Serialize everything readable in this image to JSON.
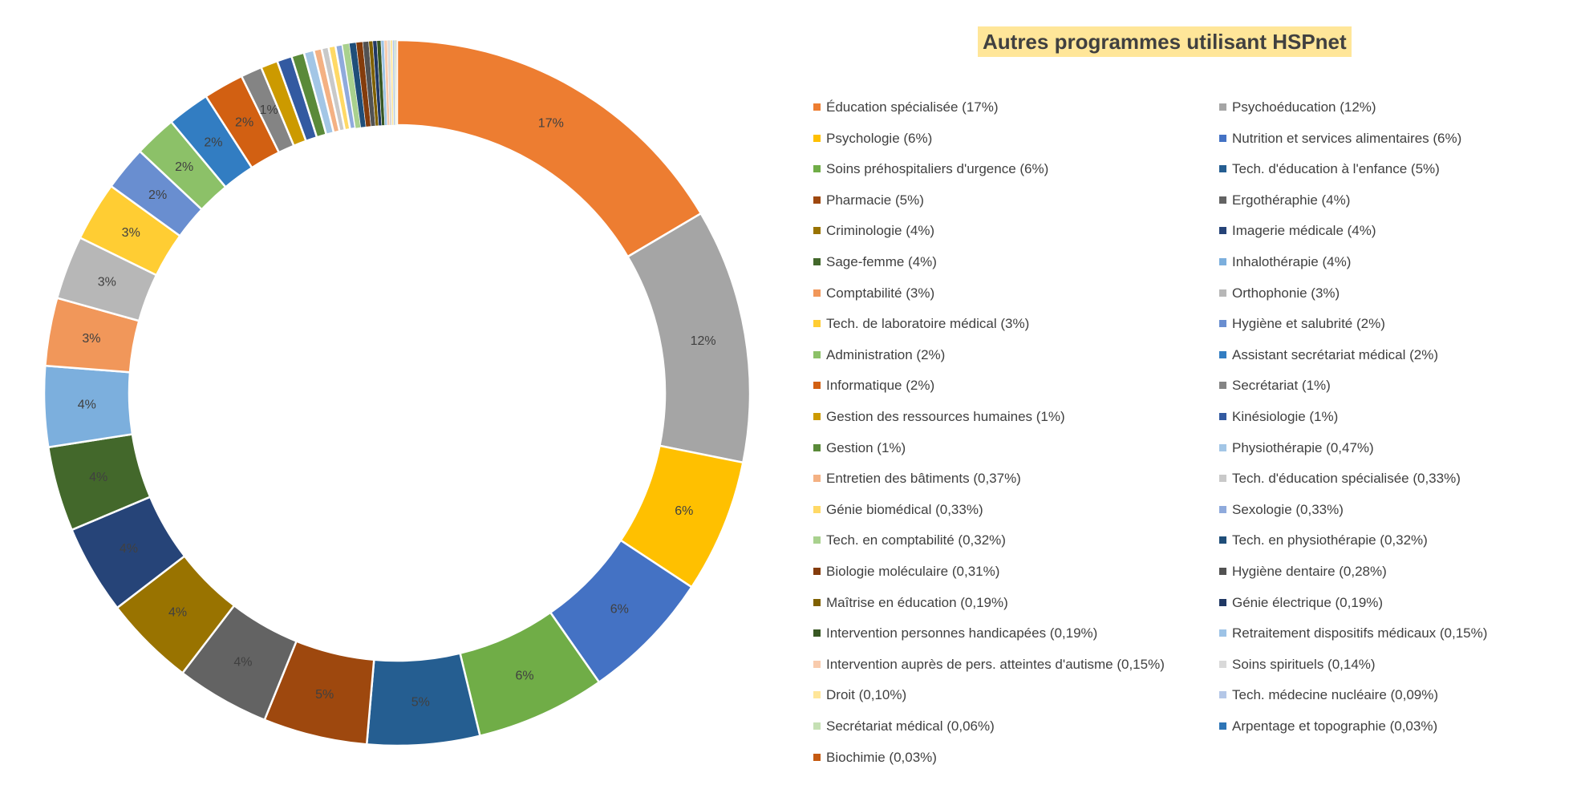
{
  "chart_data": {
    "type": "pie",
    "subtype": "donut",
    "title": "Autres programmes utilisant HSPnet",
    "title_highlight": "#FFE699",
    "legend_position": "right",
    "categories": [
      {
        "label": "Éducation spécialisée (17%)",
        "value": 17.0,
        "data_label": "17%",
        "color": "#ED7D31"
      },
      {
        "label": "Psychoéducation (12%)",
        "value": 12.0,
        "data_label": "12%",
        "color": "#A5A5A5"
      },
      {
        "label": "Psychologie (6%)",
        "value": 6.3,
        "data_label": "6%",
        "color": "#FFC000"
      },
      {
        "label": "Nutrition et services alimentaires (6%)",
        "value": 6.2,
        "data_label": "6%",
        "color": "#4472C4"
      },
      {
        "label": "Soins préhospitaliers d'urgence (6%)",
        "value": 6.1,
        "data_label": "6%",
        "color": "#70AD47"
      },
      {
        "label": "Tech. d'éducation à l'enfance (5%)",
        "value": 5.3,
        "data_label": "5%",
        "color": "#255E91"
      },
      {
        "label": "Pharmacie (5%)",
        "value": 4.9,
        "data_label": "5%",
        "color": "#9E480E"
      },
      {
        "label": "Ergothéraphie (4%)",
        "value": 4.4,
        "data_label": "4%",
        "color": "#636363"
      },
      {
        "label": "Criminologie (4%)",
        "value": 4.3,
        "data_label": "4%",
        "color": "#997300"
      },
      {
        "label": "Imagerie médicale (4%)",
        "value": 4.2,
        "data_label": "4%",
        "color": "#264478"
      },
      {
        "label": "Sage-femme (4%)",
        "value": 4.0,
        "data_label": "4%",
        "color": "#43682B"
      },
      {
        "label": "Inhalothérapie (4%)",
        "value": 3.8,
        "data_label": "4%",
        "color": "#7CAFDD"
      },
      {
        "label": "Comptabilité (3%)",
        "value": 3.2,
        "data_label": "3%",
        "color": "#F1975A"
      },
      {
        "label": "Orthophonie (3%)",
        "value": 3.0,
        "data_label": "3%",
        "color": "#B7B7B7"
      },
      {
        "label": "Tech. de laboratoire médical (3%)",
        "value": 2.8,
        "data_label": "3%",
        "color": "#FFCD33"
      },
      {
        "label": "Hygiène et salubrité (2%)",
        "value": 2.1,
        "data_label": "2%",
        "color": "#698ED0"
      },
      {
        "label": "Administration (2%)",
        "value": 2.0,
        "data_label": "2%",
        "color": "#8CC168"
      },
      {
        "label": "Assistant secrétariat médical (2%)",
        "value": 2.0,
        "data_label": "2%",
        "color": "#327DC2"
      },
      {
        "label": "Informatique (2%)",
        "value": 1.9,
        "data_label": "2%",
        "color": "#D26012"
      },
      {
        "label": "Secrétariat (1%)",
        "value": 1.0,
        "data_label": "1%",
        "color": "#848484"
      },
      {
        "label": "Gestion des ressources humaines (1%)",
        "value": 0.8,
        "data_label": "",
        "color": "#CC9A00"
      },
      {
        "label": "Kinésiologie (1%)",
        "value": 0.7,
        "data_label": "",
        "color": "#335AA1"
      },
      {
        "label": "Gestion (1%)",
        "value": 0.6,
        "data_label": "",
        "color": "#5A8A39"
      },
      {
        "label": "Physiothérapie (0,47%)",
        "value": 0.47,
        "data_label": "",
        "color": "#A3C6E6"
      },
      {
        "label": "Entretien des bâtiments (0,37%)",
        "value": 0.37,
        "data_label": "",
        "color": "#F4B183"
      },
      {
        "label": "Tech. d'éducation spécialisée (0,33%)",
        "value": 0.33,
        "data_label": "",
        "color": "#C9C9C9"
      },
      {
        "label": "Génie biomédical (0,33%)",
        "value": 0.33,
        "data_label": "",
        "color": "#FFD966"
      },
      {
        "label": "Sexologie (0,33%)",
        "value": 0.33,
        "data_label": "",
        "color": "#8FAADC"
      },
      {
        "label": "Tech. en comptabilité (0,32%)",
        "value": 0.32,
        "data_label": "",
        "color": "#A9D18E"
      },
      {
        "label": "Tech. en physiothérapie (0,32%)",
        "value": 0.32,
        "data_label": "",
        "color": "#1F4E79"
      },
      {
        "label": "Biologie moléculaire (0,31%)",
        "value": 0.31,
        "data_label": "",
        "color": "#843C0C"
      },
      {
        "label": "Hygiène dentaire (0,28%)",
        "value": 0.28,
        "data_label": "",
        "color": "#525252"
      },
      {
        "label": "Maîtrise en éducation (0,19%)",
        "value": 0.19,
        "data_label": "",
        "color": "#7F6000"
      },
      {
        "label": "Génie électrique (0,19%)",
        "value": 0.19,
        "data_label": "",
        "color": "#203864"
      },
      {
        "label": "Intervention personnes handicapées (0,19%)",
        "value": 0.19,
        "data_label": "",
        "color": "#385723"
      },
      {
        "label": "Retraitement dispositifs médicaux (0,15%)",
        "value": 0.15,
        "data_label": "",
        "color": "#9DC3E6"
      },
      {
        "label": "Intervention auprès de pers. atteintes d'autisme (0,15%)",
        "value": 0.15,
        "data_label": "",
        "color": "#F8CBAD"
      },
      {
        "label": "Soins spirituels (0,14%)",
        "value": 0.14,
        "data_label": "",
        "color": "#D9D9D9"
      },
      {
        "label": "Droit (0,10%)",
        "value": 0.1,
        "data_label": "",
        "color": "#FFE699"
      },
      {
        "label": "Tech. médecine nucléaire (0,09%)",
        "value": 0.09,
        "data_label": "",
        "color": "#B4C7E7"
      },
      {
        "label": "Secrétariat médical (0,06%)",
        "value": 0.06,
        "data_label": "",
        "color": "#C5E0B4"
      },
      {
        "label": "Arpentage et topographie (0,03%)",
        "value": 0.03,
        "data_label": "",
        "color": "#2E75B6"
      },
      {
        "label": "Biochimie (0,03%)",
        "value": 0.03,
        "data_label": "",
        "color": "#C55A11"
      }
    ]
  }
}
